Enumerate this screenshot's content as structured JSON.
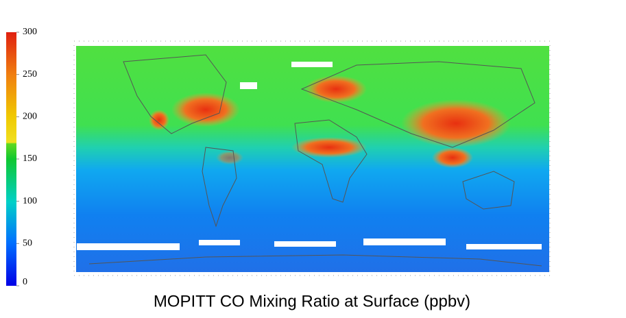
{
  "title": "MOPITT CO Mixing Ratio at Surface  (ppbv)",
  "colorbar": {
    "lim": [
      0,
      300
    ],
    "ticks": [
      0,
      50,
      100,
      150,
      200,
      250,
      300
    ]
  }
}
